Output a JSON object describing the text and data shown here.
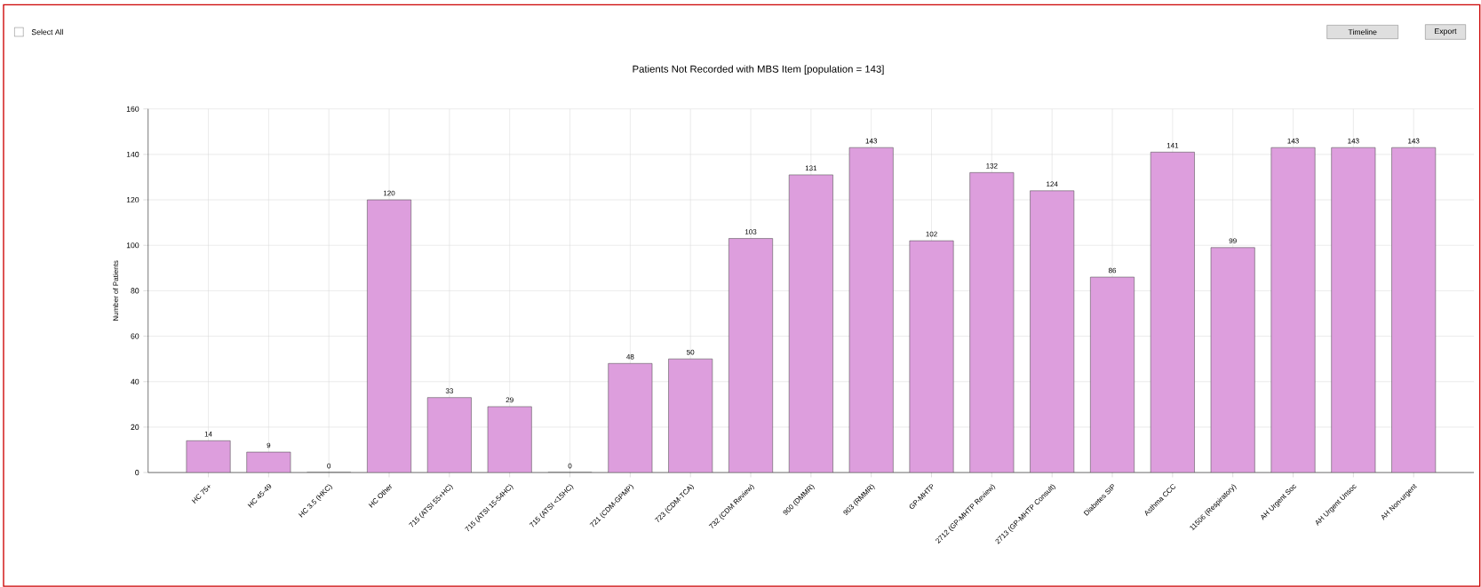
{
  "chart_data": {
    "type": "bar",
    "title": "Patients Not Recorded with MBS Item [population = 143]",
    "ylabel": "Number of Patients",
    "categories": [
      "HC 75+",
      "HC 45-49",
      "HC 3.5 (HKC)",
      "HC Other",
      "715 (ATSI 55+HC)",
      "715 (ATSI 15-54HC)",
      "715 (ATSI <15HC)",
      "721 (CDM-GPMP)",
      "723 (CDM-TCA)",
      "732 (CDM Review)",
      "900 (DMMR)",
      "903 (RMMR)",
      "GP-MHTP",
      "2712 (GP-MHTP Review)",
      "2713 (GP-MHTP Consult)",
      "Diabetes SIP",
      "Asthma CCC",
      "11506 (Respiratory)",
      "AH Urgent Soc",
      "AH Urgent Unsoc",
      "AH Non-urgent"
    ],
    "values": [
      14,
      9,
      0,
      120,
      33,
      29,
      0,
      48,
      50,
      103,
      131,
      143,
      102,
      132,
      124,
      86,
      141,
      99,
      143,
      143,
      143
    ],
    "color": "#dd9edd",
    "ylim": [
      0,
      160
    ],
    "yticks": [
      0,
      20,
      40,
      60,
      80,
      100,
      120,
      140,
      160
    ],
    "grid": true,
    "data_labels": true,
    "annotations": [
      "Select All",
      "Timeline",
      "Export"
    ]
  }
}
